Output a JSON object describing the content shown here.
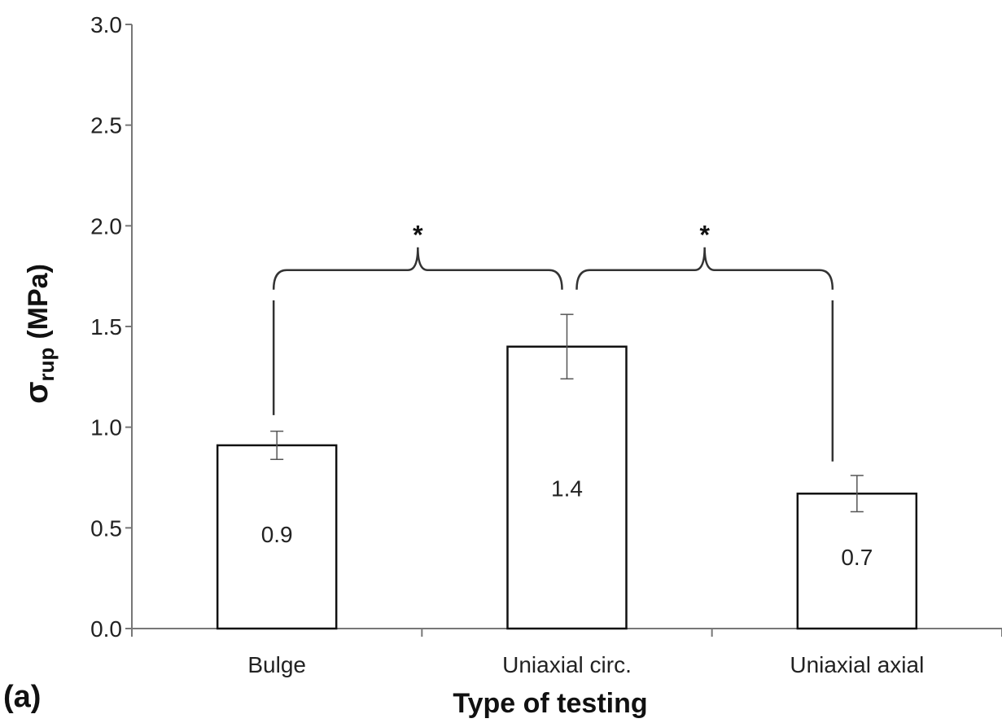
{
  "chart_data": {
    "type": "bar",
    "categories": [
      "Bulge",
      "Uniaxial circ.",
      "Uniaxial axial"
    ],
    "values": [
      0.91,
      1.4,
      0.67
    ],
    "value_labels": [
      "0.9",
      "1.4",
      "0.7"
    ],
    "error": [
      0.07,
      0.16,
      0.09
    ],
    "ylim": [
      0,
      3.0
    ],
    "yticks": [
      "0.0",
      "0.5",
      "1.0",
      "1.5",
      "2.0",
      "2.5",
      "3.0"
    ],
    "ytick_values": [
      0,
      0.5,
      1.0,
      1.5,
      2.0,
      2.5,
      3.0
    ],
    "xlabel": "Type of testing",
    "ylabel_symbol": "σ",
    "ylabel_sub": "rup",
    "ylabel_unit": "(MPa)",
    "significance": [
      {
        "from": "Bulge",
        "to": "Uniaxial circ.",
        "mark": "*"
      },
      {
        "from": "Uniaxial circ.",
        "to": "Uniaxial axial",
        "mark": "*"
      }
    ],
    "panel_label": "(a)",
    "bar_fill": "#ffffff",
    "bar_stroke": "#111111",
    "grid": false
  }
}
